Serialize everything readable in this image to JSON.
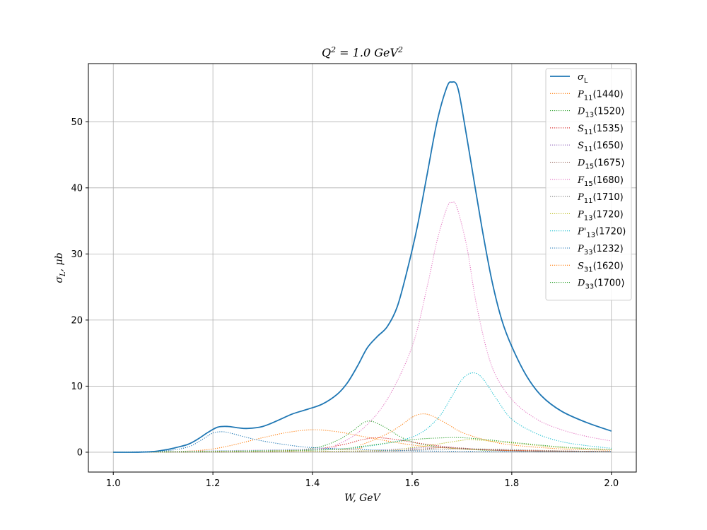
{
  "chart_data": {
    "type": "line",
    "title": "Q^2 = 1.0 GeV^2",
    "xlabel": "W, GeV",
    "ylabel": "σ_L, μb",
    "xlim": [
      0.95,
      2.05
    ],
    "ylim": [
      -3,
      58.8
    ],
    "xticks": [
      1.0,
      1.2,
      1.4,
      1.6,
      1.8,
      2.0
    ],
    "xtick_labels": [
      "1.0",
      "1.2",
      "1.4",
      "1.6",
      "1.8",
      "2.0"
    ],
    "yticks": [
      0,
      10,
      20,
      30,
      40,
      50
    ],
    "ytick_labels": [
      "0",
      "10",
      "20",
      "30",
      "40",
      "50"
    ],
    "grid": true,
    "legend_position": "top-right",
    "series": [
      {
        "name": "σ_L",
        "color": "#1f77b4",
        "style": "solid",
        "x": [
          1.0,
          1.05,
          1.08,
          1.1,
          1.12,
          1.15,
          1.17,
          1.19,
          1.21,
          1.23,
          1.25,
          1.27,
          1.3,
          1.33,
          1.36,
          1.39,
          1.42,
          1.45,
          1.47,
          1.49,
          1.51,
          1.53,
          1.55,
          1.57,
          1.59,
          1.61,
          1.63,
          1.65,
          1.67,
          1.68,
          1.69,
          1.7,
          1.72,
          1.74,
          1.76,
          1.78,
          1.8,
          1.83,
          1.86,
          1.9,
          1.95,
          2.0
        ],
        "y": [
          0.0,
          0.0,
          0.1,
          0.3,
          0.6,
          1.2,
          2.0,
          3.0,
          3.8,
          3.9,
          3.7,
          3.6,
          3.9,
          4.8,
          5.8,
          6.5,
          7.3,
          8.8,
          10.5,
          13.0,
          15.8,
          17.5,
          19.0,
          22.0,
          27.5,
          34.0,
          42.0,
          50.0,
          55.3,
          56.0,
          55.5,
          52.0,
          43.0,
          34.0,
          26.0,
          20.0,
          16.0,
          11.5,
          8.5,
          6.2,
          4.5,
          3.2
        ]
      },
      {
        "name": "P_11(1440)",
        "color": "#ff7f0e",
        "style": "dotted",
        "x": [
          1.0,
          1.1,
          1.2,
          1.3,
          1.35,
          1.4,
          1.45,
          1.5,
          1.6,
          1.7,
          1.8,
          2.0
        ],
        "y": [
          0.0,
          0.05,
          0.5,
          2.2,
          3.0,
          3.4,
          3.1,
          2.4,
          1.1,
          0.5,
          0.25,
          0.1
        ]
      },
      {
        "name": "D_13(1520)",
        "color": "#2ca02c",
        "style": "dotted",
        "x": [
          1.0,
          1.3,
          1.4,
          1.45,
          1.48,
          1.51,
          1.54,
          1.58,
          1.62,
          1.7,
          1.8,
          2.0
        ],
        "y": [
          0.0,
          0.1,
          0.6,
          1.8,
          3.2,
          4.7,
          4.0,
          2.2,
          1.2,
          0.5,
          0.2,
          0.05
        ]
      },
      {
        "name": "S_11(1535)",
        "color": "#d62728",
        "style": "dotted",
        "x": [
          1.0,
          1.35,
          1.45,
          1.5,
          1.53,
          1.57,
          1.62,
          1.7,
          1.8,
          2.0
        ],
        "y": [
          0.0,
          0.2,
          1.0,
          1.9,
          2.2,
          1.9,
          1.3,
          0.6,
          0.3,
          0.1
        ]
      },
      {
        "name": "S_11(1650)",
        "color": "#9467bd",
        "style": "dotted",
        "x": [
          1.0,
          1.4,
          1.5,
          1.6,
          1.65,
          1.7,
          1.8,
          2.0
        ],
        "y": [
          0.0,
          0.05,
          0.2,
          0.6,
          0.8,
          0.6,
          0.2,
          0.05
        ]
      },
      {
        "name": "D_15(1675)",
        "color": "#8c564b",
        "style": "dotted",
        "x": [
          1.0,
          1.5,
          1.6,
          1.67,
          1.75,
          1.85,
          2.0
        ],
        "y": [
          0.0,
          0.1,
          0.4,
          0.7,
          0.4,
          0.15,
          0.05
        ]
      },
      {
        "name": "F_15(1680)",
        "color": "#e377c2",
        "style": "dotted",
        "x": [
          1.0,
          1.4,
          1.45,
          1.5,
          1.55,
          1.6,
          1.63,
          1.65,
          1.67,
          1.68,
          1.69,
          1.71,
          1.73,
          1.76,
          1.8,
          1.85,
          1.9,
          1.95,
          2.0
        ],
        "y": [
          0.0,
          0.5,
          1.2,
          3.5,
          8.0,
          16.0,
          25.0,
          32.0,
          37.0,
          37.8,
          37.0,
          31.0,
          22.0,
          13.0,
          8.0,
          5.0,
          3.4,
          2.4,
          1.7
        ]
      },
      {
        "name": "P_11(1710)",
        "color": "#7f7f7f",
        "style": "dotted",
        "x": [
          1.0,
          1.5,
          1.6,
          1.7,
          1.8,
          1.9,
          2.0
        ],
        "y": [
          0.0,
          0.1,
          0.3,
          0.5,
          0.4,
          0.2,
          0.1
        ]
      },
      {
        "name": "P_13(1720)",
        "color": "#bcbd22",
        "style": "dotted",
        "x": [
          1.0,
          1.5,
          1.6,
          1.7,
          1.72,
          1.8,
          1.9,
          2.0
        ],
        "y": [
          0.0,
          0.2,
          0.7,
          1.8,
          1.9,
          1.4,
          0.7,
          0.4
        ]
      },
      {
        "name": "P'_13(1720)",
        "color": "#17becf",
        "style": "dotted",
        "x": [
          1.0,
          1.4,
          1.5,
          1.6,
          1.65,
          1.68,
          1.7,
          1.72,
          1.74,
          1.77,
          1.8,
          1.85,
          1.9,
          1.95,
          2.0
        ],
        "y": [
          0.0,
          0.4,
          0.8,
          2.3,
          5.0,
          8.5,
          11.0,
          12.0,
          11.3,
          8.0,
          5.0,
          2.8,
          1.6,
          1.0,
          0.6
        ]
      },
      {
        "name": "P_33(1232)",
        "color": "#1f77b4",
        "style": "dotted",
        "x": [
          1.0,
          1.1,
          1.15,
          1.18,
          1.2,
          1.22,
          1.24,
          1.27,
          1.3,
          1.35,
          1.4,
          1.5,
          1.6,
          1.8,
          2.0
        ],
        "y": [
          0.0,
          0.2,
          0.8,
          2.0,
          2.9,
          3.1,
          2.8,
          2.2,
          1.7,
          1.1,
          0.7,
          0.4,
          0.2,
          0.1,
          0.05
        ]
      },
      {
        "name": "S_31(1620)",
        "color": "#ff7f0e",
        "style": "dotted",
        "x": [
          1.0,
          1.45,
          1.5,
          1.55,
          1.58,
          1.6,
          1.62,
          1.64,
          1.67,
          1.7,
          1.75,
          1.8,
          1.9,
          2.0
        ],
        "y": [
          0.0,
          0.4,
          1.2,
          2.8,
          4.2,
          5.3,
          5.8,
          5.5,
          4.3,
          3.0,
          1.8,
          1.1,
          0.5,
          0.3
        ]
      },
      {
        "name": "D_33(1700)",
        "color": "#2ca02c",
        "style": "dotted",
        "x": [
          1.0,
          1.4,
          1.5,
          1.6,
          1.67,
          1.7,
          1.75,
          1.8,
          1.9,
          2.0
        ],
        "y": [
          0.0,
          0.3,
          0.9,
          1.9,
          2.2,
          2.2,
          1.9,
          1.5,
          0.8,
          0.4
        ]
      }
    ]
  }
}
